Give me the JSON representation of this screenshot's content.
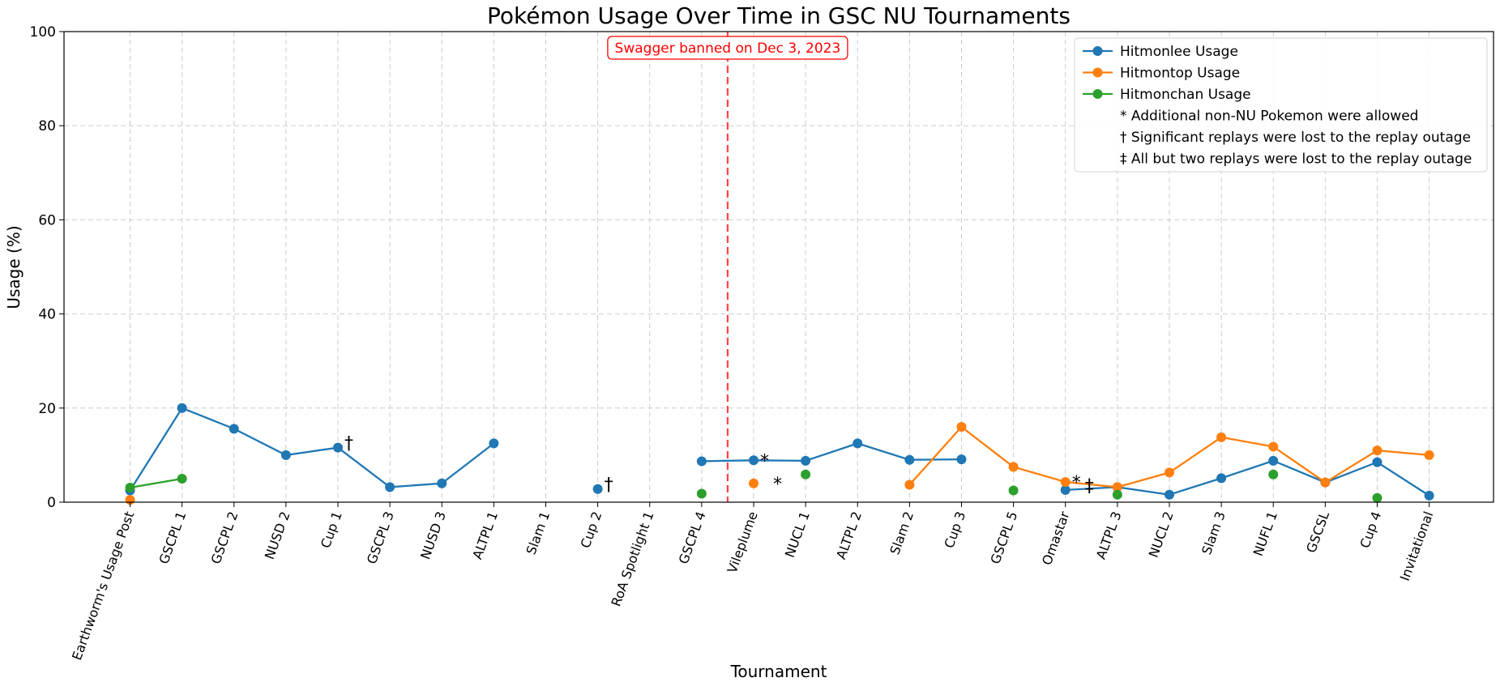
{
  "chart_data": {
    "type": "line",
    "title": "Pokémon Usage Over Time in GSC NU Tournaments",
    "xlabel": "Tournament",
    "ylabel": "Usage (%)",
    "ylim": [
      0,
      100
    ],
    "yticks": [
      0,
      20,
      40,
      60,
      80,
      100
    ],
    "grid": true,
    "legend_position": "top-right",
    "categories": [
      "Earthworm's Usage Post",
      "GSCPL 1",
      "GSCPL 2",
      "NUSD 2",
      "Cup 1",
      "GSCPL 3",
      "NUSD 3",
      "ALTPL 1",
      "Slam 1",
      "Cup 2",
      "RoA Spotlight 1",
      "GSCPL 4",
      "Vileplume",
      "NUCL 1",
      "ALTPL 2",
      "Slam 2",
      "Cup 3",
      "GSCPL 5",
      "Omastar",
      "ALTPL 3",
      "NUCL 2",
      "Slam 3",
      "NUFL 1",
      "GSCSL",
      "Cup 4",
      "Invitational"
    ],
    "series": [
      {
        "name": "Hitmonlee Usage",
        "color": "#1f77b4",
        "values": [
          2.5,
          20.0,
          15.6,
          10.0,
          11.6,
          3.2,
          4.0,
          12.5,
          null,
          2.8,
          null,
          8.7,
          8.9,
          8.8,
          12.5,
          9.0,
          9.1,
          null,
          2.6,
          3.2,
          1.6,
          5.1,
          8.8,
          4.2,
          8.5,
          1.4
        ]
      },
      {
        "name": "Hitmontop Usage",
        "color": "#ff7f0e",
        "values": [
          0.5,
          null,
          null,
          null,
          null,
          null,
          null,
          null,
          null,
          null,
          null,
          null,
          4.0,
          null,
          null,
          3.7,
          16.0,
          7.5,
          4.3,
          3.2,
          6.3,
          13.8,
          11.8,
          4.2,
          11.0,
          10.0
        ]
      },
      {
        "name": "Hitmonchan Usage",
        "color": "#2ca02c",
        "values": [
          3.1,
          5.0,
          null,
          null,
          null,
          null,
          null,
          null,
          null,
          null,
          null,
          1.8,
          null,
          5.9,
          null,
          null,
          null,
          2.5,
          null,
          1.6,
          null,
          null,
          5.9,
          null,
          0.9,
          null
        ]
      }
    ],
    "annotations": [
      {
        "category": "Cup 1",
        "series": "Hitmonlee Usage",
        "symbol": "†"
      },
      {
        "category": "Cup 2",
        "series": "Hitmonlee Usage",
        "symbol": "†"
      },
      {
        "category": "Vileplume",
        "series": "Hitmonlee Usage",
        "symbol": "*"
      },
      {
        "category": "Vileplume",
        "series": "Hitmontop Usage",
        "symbol": "*"
      },
      {
        "category": "Omastar",
        "series": "Hitmontop Usage",
        "symbol": "*"
      },
      {
        "category": "Omastar",
        "series": "Hitmonlee Usage",
        "symbol": "‡"
      }
    ],
    "vline": {
      "between": [
        "GSCPL 4",
        "Vileplume"
      ],
      "label": "Swagger banned on Dec 3, 2023",
      "color": "#ff0000"
    },
    "legend_notes": [
      "* Additional non-NU Pokemon were allowed",
      "† Significant replays were lost to the replay outage",
      "‡ All but two replays were lost to the replay outage"
    ]
  }
}
